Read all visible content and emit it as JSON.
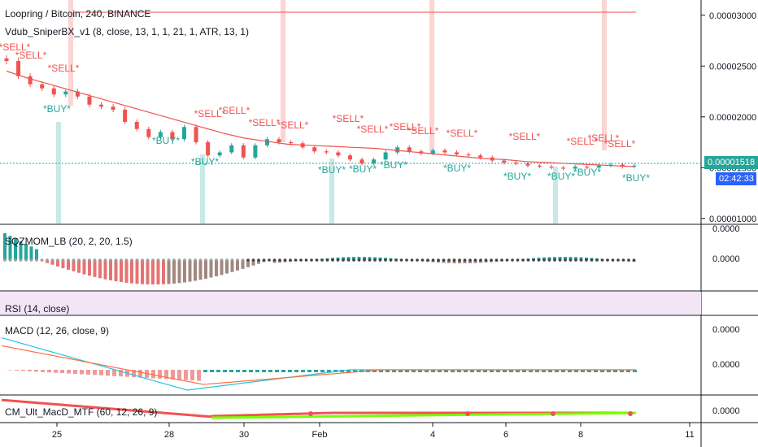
{
  "header": {
    "title": "Loopring / Bitcoin, 240, BINANCE",
    "indicator": "Vdub_SniperBX_v1 (8, close, 13, 1, 1, 21, 1, ATR, 13, 1)"
  },
  "price_badge": {
    "value": "0.00001518",
    "time": "02:42:33",
    "color": "#26a69a",
    "time_color": "#2962ff"
  },
  "panes": {
    "sqzmom": {
      "label": "SQZMOM_LB (20, 2, 20, 1.5)",
      "ticks": [
        "0.0000",
        "0.0000"
      ]
    },
    "rsi": {
      "label": "RSI (14, close)"
    },
    "macd": {
      "label": "MACD (12, 26, close, 9)",
      "ticks": [
        "0.0000",
        "0.0000"
      ]
    },
    "cm": {
      "label": "CM_Ult_MacD_MTF (60, 12, 26, 9)",
      "ticks": [
        "0.0000"
      ]
    }
  },
  "signals": {
    "sell_text": "*SELL*",
    "buy_text": "*BUY*",
    "sell_color": "#ef5350",
    "buy_color": "#26a69a"
  },
  "colors": {
    "up": "#26a69a",
    "down": "#ef5350",
    "ema": "#ef5350",
    "sell_line": "#ef5350"
  },
  "chart_data": {
    "type": "line",
    "title": "Loopring / Bitcoin, 240, BINANCE",
    "x_ticks": [
      "25",
      "28",
      "30",
      "Feb",
      "4",
      "6",
      "8",
      "11"
    ],
    "y_ticks": [
      3e-05,
      2.5e-05,
      2e-05,
      1.5e-05,
      1e-05
    ],
    "y_tick_labels": [
      "0.00003000",
      "0.00002500",
      "0.00002000",
      "0.00001500",
      "0.00001000"
    ],
    "ylim": [
      9.5e-06,
      3.15e-05
    ],
    "last_price": 1.518e-05,
    "series": [
      {
        "values": [
          2.55e-05,
          2.4e-05,
          2.32e-05,
          2.28e-05,
          2.22e-05,
          2.25e-05,
          2.2e-05,
          2.12e-05,
          2.1e-05,
          2.07e-05,
          1.95e-05,
          1.88e-05,
          1.8e-05,
          1.85e-05,
          1.78e-05,
          1.9e-05,
          1.75e-05,
          1.62e-05,
          1.65e-05,
          1.72e-05,
          1.6e-05,
          1.72e-05,
          1.78e-05,
          1.75e-05,
          1.74e-05,
          1.7e-05,
          1.66e-05,
          1.65e-05,
          1.62e-05,
          1.58e-05,
          1.54e-05,
          1.58e-05,
          1.65e-05,
          1.7e-05,
          1.66e-05,
          1.64e-05,
          1.67e-05,
          1.65e-05,
          1.63e-05,
          1.62e-05,
          1.6e-05,
          1.57e-05,
          1.55e-05,
          1.54e-05,
          1.52e-05,
          1.51e-05,
          1.5e-05,
          1.49e-05,
          1.51e-05,
          1.5e-05,
          1.52e-05,
          1.53e-05,
          1.51e-05,
          1.52e-05
        ]
      }
    ],
    "ema": [
      2.45e-05,
      2.38e-05,
      2.32e-05,
      2.26e-05,
      2.2e-05,
      2.14e-05,
      2.08e-05,
      2.02e-05,
      1.96e-05,
      1.9e-05,
      1.84e-05,
      1.79e-05,
      1.76e-05,
      1.73e-05,
      1.72e-05,
      1.71e-05,
      1.7e-05,
      1.69e-05,
      1.67e-05,
      1.65e-05,
      1.63e-05,
      1.61e-05,
      1.59e-05,
      1.58e-05,
      1.56e-05,
      1.55e-05,
      1.54e-05,
      1.53e-05,
      1.52e-05,
      1.51e-05
    ]
  }
}
